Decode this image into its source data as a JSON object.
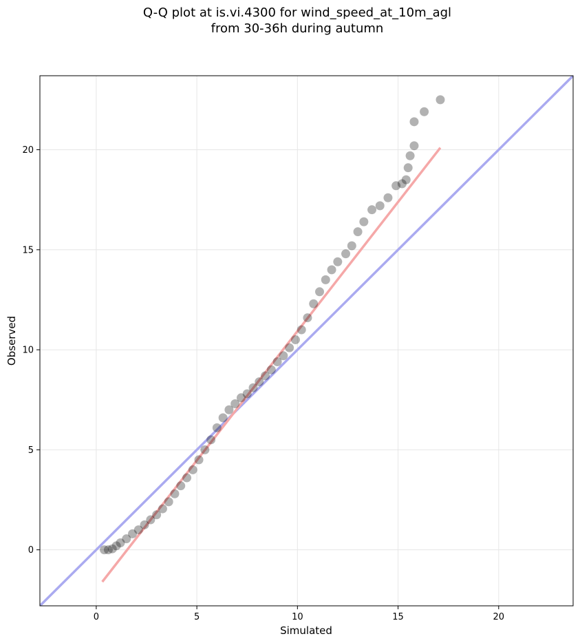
{
  "chart_data": {
    "type": "scatter",
    "title": "Q-Q plot at is.vi.4300 for wind_speed_at_10m_agl",
    "subtitle": "from 30-36h during autumn",
    "x_label": "Simulated",
    "y_label": "Observed",
    "xlim": [
      -2.8,
      23.7
    ],
    "ylim": [
      -2.8,
      23.7
    ],
    "xticks": [
      0,
      5,
      10,
      15,
      20
    ],
    "yticks": [
      0,
      5,
      10,
      15,
      20
    ],
    "grid": true,
    "color": "#000000",
    "x": [
      0.4,
      0.6,
      0.8,
      1.0,
      1.2,
      1.5,
      1.8,
      2.1,
      2.4,
      2.7,
      3.0,
      3.3,
      3.6,
      3.9,
      4.2,
      4.5,
      4.8,
      5.1,
      5.4,
      5.7,
      6.0,
      6.3,
      6.6,
      6.9,
      7.2,
      7.5,
      7.8,
      8.1,
      8.4,
      8.7,
      9.0,
      9.3,
      9.6,
      9.9,
      10.2,
      10.5,
      10.8,
      11.1,
      11.4,
      11.7,
      12.0,
      12.4,
      12.7,
      13.0,
      13.3,
      13.7,
      14.1,
      14.5,
      14.9,
      15.2,
      15.4,
      15.5,
      15.6,
      15.8,
      15.8,
      16.3,
      17.1
    ],
    "y": [
      0,
      0,
      0.05,
      0.2,
      0.35,
      0.55,
      0.8,
      1.0,
      1.25,
      1.5,
      1.75,
      2.05,
      2.4,
      2.8,
      3.2,
      3.6,
      4.0,
      4.5,
      5.0,
      5.5,
      6.1,
      6.6,
      7.0,
      7.3,
      7.6,
      7.8,
      8.1,
      8.4,
      8.7,
      9.0,
      9.4,
      9.7,
      10.1,
      10.5,
      11.0,
      11.6,
      12.3,
      12.9,
      13.5,
      14.0,
      14.4,
      14.8,
      15.2,
      15.9,
      16.4,
      17.0,
      17.2,
      17.6,
      18.2,
      18.3,
      18.5,
      19.1,
      19.7,
      20.2,
      21.4,
      21.9,
      22.5
    ],
    "reference_line": {
      "x": [
        -2.8,
        23.7
      ],
      "y": [
        -2.8,
        23.7
      ],
      "color": "#aaaaf0"
    },
    "fit_line": {
      "x": [
        0.3,
        17.1
      ],
      "y": [
        -1.6,
        20.1
      ],
      "color": "#f5a8a8"
    }
  }
}
